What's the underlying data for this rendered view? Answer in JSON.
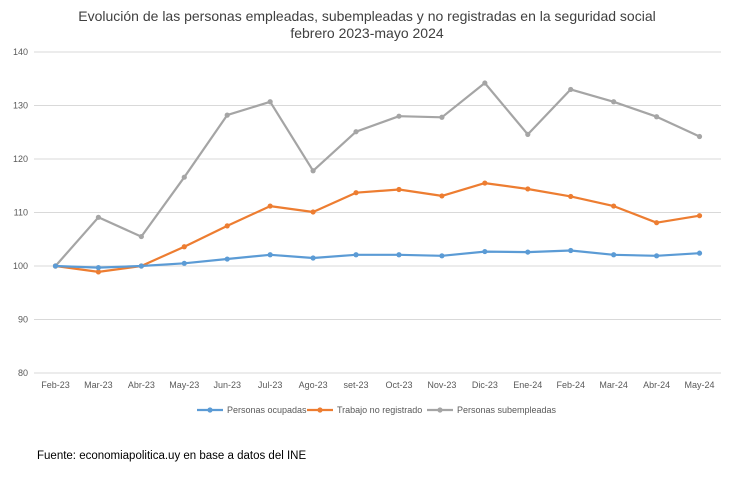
{
  "chart_data": {
    "type": "line",
    "title": "Evolución de las personas empleadas, subempleadas y no registradas en la seguridad social",
    "subtitle": "febrero 2023-mayo 2024",
    "xlabel": "",
    "ylabel": "",
    "ylim": [
      80,
      140
    ],
    "yticks": [
      80,
      90,
      100,
      110,
      120,
      130,
      140
    ],
    "grid": true,
    "legend_position": "bottom",
    "categories": [
      "Feb-23",
      "Mar-23",
      "Abr-23",
      "May-23",
      "Jun-23",
      "Jul-23",
      "Ago-23",
      "set-23",
      "Oct-23",
      "Nov-23",
      "Dic-23",
      "Ene-24",
      "Feb-24",
      "Mar-24",
      "Abr-24",
      "May-24"
    ],
    "series": [
      {
        "name": "Personas ocupadas",
        "color": "#5B9BD5",
        "values": [
          100,
          99.7,
          100,
          100.5,
          101.3,
          102.1,
          101.5,
          102.1,
          102.1,
          101.9,
          102.7,
          102.6,
          102.9,
          102.1,
          101.9,
          102.4
        ]
      },
      {
        "name": "Trabajo no registrado",
        "color": "#ED7D31",
        "values": [
          100,
          98.9,
          100,
          103.6,
          107.5,
          111.2,
          110.1,
          113.7,
          114.3,
          113.1,
          115.5,
          114.4,
          113,
          111.2,
          108.1,
          109.4
        ]
      },
      {
        "name": "Personas subempleadas",
        "color": "#A5A5A5",
        "values": [
          100,
          109.1,
          105.5,
          116.6,
          128.2,
          130.7,
          117.8,
          125.1,
          128,
          127.8,
          134.2,
          124.6,
          133,
          130.7,
          127.9,
          124.2
        ]
      }
    ]
  },
  "source_text": "Fuente: economiapolitica.uy en base a datos del INE"
}
